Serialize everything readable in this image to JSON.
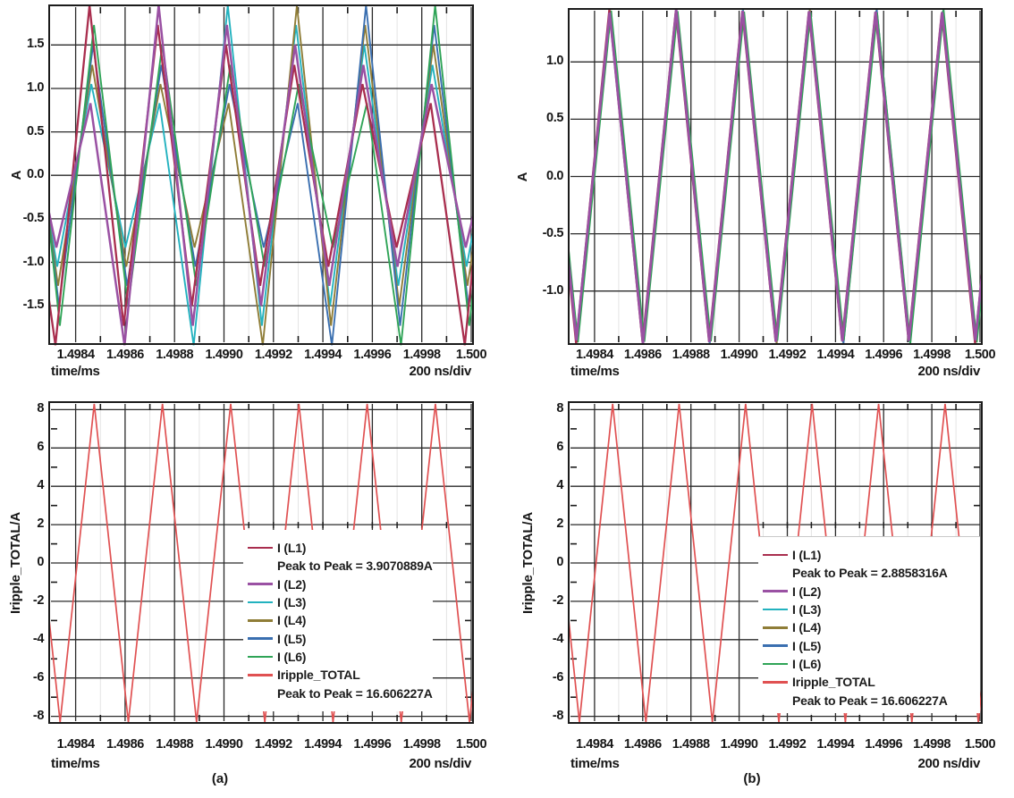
{
  "captions": {
    "a": "(a)",
    "b": "(b)"
  },
  "palette": {
    "background": "#ffffff",
    "grid_major": "#2a2a2a",
    "grid_minor": "#e4e4e4",
    "frame": "#1b1b1b",
    "text": "#161616",
    "phase_L1": "#a92e4e",
    "phase_L2": "#9a51a3",
    "phase_L3": "#23b2bf",
    "phase_L4": "#8f7d37",
    "phase_L5": "#3a6fb0",
    "phase_L6": "#2fa457",
    "total_red": "#e05152"
  },
  "chart_data": [
    {
      "id": "top_left",
      "panel": "a",
      "type": "line",
      "title": "",
      "xlabel": "time/ms",
      "x_div_label": "200 ns/div",
      "ylabel": "A",
      "xlim": [
        1.4983,
        1.5
      ],
      "ylim": [
        -1.92,
        1.935
      ],
      "xticks": {
        "values": [
          1.4984,
          1.4986,
          1.4988,
          1.499,
          1.4992,
          1.4994,
          1.4996,
          1.4998,
          1.5
        ],
        "labels": [
          "1.4984",
          "1.4986",
          "1.4988",
          "1.4990",
          "1.4992",
          "1.4994",
          "1.4996",
          "1.4998",
          "1.500"
        ]
      },
      "yticks": {
        "values": [
          1.5,
          1.0,
          0.5,
          0.0,
          -0.5,
          -1.0,
          -1.5
        ],
        "labels": [
          "1.5",
          "1.0",
          "0.5",
          "0.0",
          "-0.5",
          "-1.0",
          "-1.5"
        ]
      },
      "x_minor": [
        1.4985,
        1.4987,
        1.4989,
        1.4991,
        1.4993,
        1.4995,
        1.4997,
        1.4999
      ],
      "grid": true,
      "wave": {
        "kind": "triangle-rotating",
        "period_ms": 0.000276,
        "first_peak_ms": 1.498465,
        "amp_rotation": [
          1.954,
          1.73,
          1.5,
          1.27,
          1.05,
          0.83
        ],
        "rule": "amplitude of phase k at cycle n = amp_rotation[(n-k) mod 6]"
      },
      "draw_order": [
        2,
        3,
        4,
        5,
        0,
        1
      ],
      "series": [
        {
          "name": "I (L1)",
          "color": "#a92e4e",
          "width": 2.3,
          "offset_ms": -9e-06
        },
        {
          "name": "I (L2)",
          "color": "#9a51a3",
          "width": 2.5,
          "offset_ms": -5.4e-06
        },
        {
          "name": "I (L3)",
          "color": "#23b2bf",
          "width": 1.9,
          "offset_ms": -1.8e-06
        },
        {
          "name": "I (L4)",
          "color": "#8f7d37",
          "width": 1.9,
          "offset_ms": 1.8e-06
        },
        {
          "name": "I (L5)",
          "color": "#3a6fb0",
          "width": 1.9,
          "offset_ms": 5.4e-06
        },
        {
          "name": "I (L6)",
          "color": "#2fa457",
          "width": 1.9,
          "offset_ms": 9e-06
        }
      ]
    },
    {
      "id": "top_right",
      "panel": "b",
      "type": "line",
      "title": "",
      "xlabel": "time/ms",
      "x_div_label": "200 ns/div",
      "ylabel": "A",
      "xlim": [
        1.4983,
        1.5
      ],
      "ylim": [
        -1.447,
        1.447
      ],
      "xticks": {
        "values": [
          1.4984,
          1.4986,
          1.4988,
          1.499,
          1.4992,
          1.4994,
          1.4996,
          1.4998,
          1.5
        ],
        "labels": [
          "1.4984",
          "1.4986",
          "1.4988",
          "1.4990",
          "1.4992",
          "1.4994",
          "1.4996",
          "1.4998",
          "1.500"
        ]
      },
      "yticks": {
        "values": [
          1.0,
          0.5,
          0.0,
          -0.5,
          -1.0
        ],
        "labels": [
          "1.0",
          "0.5",
          "0.0",
          "-0.5",
          "-1.0"
        ]
      },
      "x_minor": [
        1.4985,
        1.4987,
        1.4989,
        1.4991,
        1.4993,
        1.4995,
        1.4997,
        1.4999
      ],
      "grid": true,
      "wave": {
        "kind": "triangle-near-equal",
        "period_ms": 0.000276,
        "first_peak_ms": 1.498465,
        "amp_base": 1.443,
        "amp_rotation_small": [
          0.013,
          0.005,
          0.0,
          -0.005,
          -0.009,
          -0.013
        ],
        "rule": "amplitude of phase k at cycle n = amp_base + amp_rotation_small[(n-k) mod 6]"
      },
      "draw_order": [
        2,
        3,
        4,
        5,
        0,
        1
      ],
      "series": [
        {
          "name": "I (L1)",
          "color": "#a92e4e",
          "width": 2.4,
          "offset_ms": -3.6e-06
        },
        {
          "name": "I (L2)",
          "color": "#9a51a3",
          "width": 2.8,
          "offset_ms": -2.2e-06
        },
        {
          "name": "I (L3)",
          "color": "#23b2bf",
          "width": 2.0,
          "offset_ms": -7e-07
        },
        {
          "name": "I (L4)",
          "color": "#8f7d37",
          "width": 2.0,
          "offset_ms": 7e-07
        },
        {
          "name": "I (L5)",
          "color": "#3a6fb0",
          "width": 2.0,
          "offset_ms": 2.2e-06
        },
        {
          "name": "I (L6)",
          "color": "#2fa457",
          "width": 2.0,
          "offset_ms": 3.6e-06
        }
      ]
    },
    {
      "id": "bottom_left",
      "panel": "a",
      "type": "line",
      "title": "",
      "xlabel": "time/ms",
      "x_div_label": "200 ns/div",
      "ylabel": "Iripple_TOTAL/A",
      "xlim": [
        1.4983,
        1.5
      ],
      "ylim": [
        -8.25,
        8.3
      ],
      "xticks": {
        "values": [
          1.4984,
          1.4986,
          1.4988,
          1.499,
          1.4992,
          1.4994,
          1.4996,
          1.4998,
          1.5
        ],
        "labels": [
          "1.4984",
          "1.4986",
          "1.4988",
          "1.4990",
          "1.4992",
          "1.4994",
          "1.4996",
          "1.4998",
          "1.500"
        ]
      },
      "yticks": {
        "values": [
          8,
          6,
          4,
          2,
          0,
          -2,
          -4,
          -6,
          -8
        ],
        "labels": [
          "8",
          "6",
          "4",
          "2",
          "0",
          "-2",
          "-4",
          "-6",
          "-8"
        ]
      },
      "x_minor": [
        1.4985,
        1.4987,
        1.4989,
        1.4991,
        1.4993,
        1.4995,
        1.4997,
        1.4999
      ],
      "y_minor": [
        7,
        5,
        3,
        1,
        -1,
        -3,
        -5,
        -7
      ],
      "legend_edge_ticks_y": 2,
      "legend_edge_ticks_x": [
        1.4991,
        1.4992,
        1.4993,
        1.4994,
        1.4995,
        1.4996,
        1.4997,
        1.4998,
        1.4999
      ],
      "grid": true,
      "wave": {
        "kind": "triangle-single",
        "period_ms": 0.000276,
        "first_peak_ms": 1.498475,
        "amplitude": 8.303
      },
      "draw_order": [
        0
      ],
      "series": [
        {
          "name": "Iripple_TOTAL",
          "color": "#e05152",
          "width": 1.7,
          "offset_ms": 0
        }
      ],
      "legend": {
        "items": [
          {
            "label": "I (L1)",
            "color": "#a92e4e"
          },
          {
            "text": "Peak to Peak = 3.9070889A"
          },
          {
            "label": "I (L2)",
            "color": "#9a51a3"
          },
          {
            "label": "I (L3)",
            "color": "#23b2bf"
          },
          {
            "label": "I (L4)",
            "color": "#8f7d37"
          },
          {
            "label": "I (L5)",
            "color": "#3a6fb0"
          },
          {
            "label": "I (L6)",
            "color": "#2fa457"
          },
          {
            "label": "Iripple_TOTAL",
            "color": "#e05152"
          },
          {
            "text": "Peak to Peak = 16.606227A"
          }
        ]
      },
      "peak_to_peak": {
        "I_L1": "3.9070889A",
        "Iripple_TOTAL": "16.606227A"
      }
    },
    {
      "id": "bottom_right",
      "panel": "b",
      "type": "line",
      "title": "",
      "xlabel": "time/ms",
      "x_div_label": "200 ns/div",
      "ylabel": "Iripple_TOTAL/A",
      "xlim": [
        1.4983,
        1.5
      ],
      "ylim": [
        -8.25,
        8.3
      ],
      "xticks": {
        "values": [
          1.4984,
          1.4986,
          1.4988,
          1.499,
          1.4992,
          1.4994,
          1.4996,
          1.4998,
          1.5
        ],
        "labels": [
          "1.4984",
          "1.4986",
          "1.4988",
          "1.4990",
          "1.4992",
          "1.4994",
          "1.4996",
          "1.4998",
          "1.500"
        ]
      },
      "yticks": {
        "values": [
          8,
          6,
          4,
          2,
          0,
          -2,
          -4,
          -6,
          -8
        ],
        "labels": [
          "8",
          "6",
          "4",
          "2",
          "0",
          "-2",
          "-4",
          "-6",
          "-8"
        ]
      },
      "x_minor": [
        1.4985,
        1.4987,
        1.4989,
        1.4991,
        1.4993,
        1.4995,
        1.4997,
        1.4999
      ],
      "y_minor": [
        7,
        5,
        3,
        1,
        -1,
        -3,
        -5,
        -7
      ],
      "legend_edge_ticks_y": 2,
      "legend_edge_ticks_x": [
        1.4991,
        1.4992,
        1.4993,
        1.4994,
        1.4995,
        1.4996,
        1.4997,
        1.4998,
        1.4999
      ],
      "grid": true,
      "wave": {
        "kind": "triangle-single",
        "period_ms": 0.000276,
        "first_peak_ms": 1.498475,
        "amplitude": 8.303
      },
      "draw_order": [
        0
      ],
      "series": [
        {
          "name": "Iripple_TOTAL",
          "color": "#e05152",
          "width": 1.7,
          "offset_ms": 0
        }
      ],
      "legend": {
        "items": [
          {
            "label": "I (L1)",
            "color": "#a92e4e"
          },
          {
            "text": "Peak to Peak = 2.8858316A"
          },
          {
            "label": "I (L2)",
            "color": "#9a51a3"
          },
          {
            "label": "I (L3)",
            "color": "#23b2bf"
          },
          {
            "label": "I (L4)",
            "color": "#8f7d37"
          },
          {
            "label": "I (L5)",
            "color": "#3a6fb0"
          },
          {
            "label": "I (L6)",
            "color": "#2fa457"
          },
          {
            "label": "Iripple_TOTAL",
            "color": "#e05152"
          },
          {
            "text": "Peak to Peak = 16.606227A"
          }
        ]
      },
      "peak_to_peak": {
        "I_L1": "2.8858316A",
        "Iripple_TOTAL": "16.606227A"
      }
    }
  ]
}
